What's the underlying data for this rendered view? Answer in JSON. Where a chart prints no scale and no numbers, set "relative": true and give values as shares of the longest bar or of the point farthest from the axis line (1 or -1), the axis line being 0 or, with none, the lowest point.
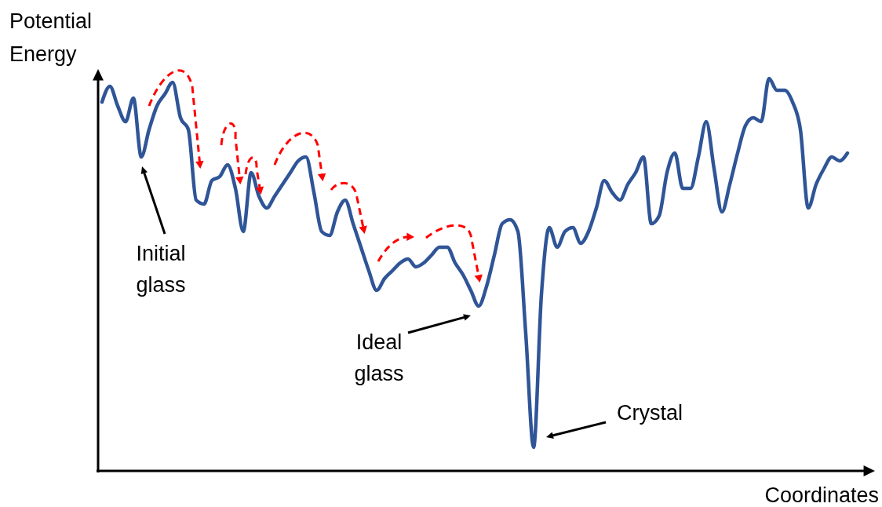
{
  "chart_data": {
    "type": "line",
    "relative": true,
    "xlabel": "Coordinates",
    "ylabel": "Potential Energy",
    "color": "#2f5597",
    "categories": [
      null,
      null,
      null,
      null,
      null,
      null,
      null,
      null,
      null,
      null,
      null,
      null,
      null,
      null,
      null,
      null,
      null,
      null,
      null,
      null,
      null,
      null,
      null,
      null,
      null,
      null,
      null,
      null,
      null,
      null,
      null,
      null,
      null,
      null,
      null,
      null,
      null,
      null,
      null,
      null,
      null,
      null,
      null,
      null,
      null,
      null,
      null,
      null,
      null,
      null,
      null,
      null,
      null,
      null,
      null,
      null,
      null,
      null,
      null,
      null,
      null,
      null,
      null,
      null,
      null,
      null,
      null,
      null,
      null,
      null,
      null,
      null,
      null,
      null,
      null,
      null,
      null,
      null,
      null,
      null,
      null,
      null,
      null,
      null,
      null,
      null,
      null,
      null,
      null,
      null,
      null,
      null,
      null,
      null,
      null,
      null
    ],
    "values": [
      0.94,
      0.98,
      0.93,
      0.89,
      0.95,
      0.8,
      0.87,
      0.93,
      0.96,
      0.99,
      0.9,
      0.87,
      0.69,
      0.68,
      0.74,
      0.75,
      0.78,
      0.72,
      0.61,
      0.76,
      0.7,
      0.67,
      0.7,
      0.73,
      0.76,
      0.79,
      0.8,
      0.71,
      0.61,
      0.6,
      0.66,
      0.69,
      0.63,
      0.57,
      0.51,
      0.46,
      0.49,
      0.51,
      0.53,
      0.54,
      0.52,
      0.53,
      0.55,
      0.57,
      0.57,
      0.53,
      0.5,
      0.46,
      0.42,
      0.47,
      0.55,
      0.63,
      0.64,
      0.61,
      0.35,
      0.06,
      0.45,
      0.62,
      0.57,
      0.61,
      0.62,
      0.58,
      0.61,
      0.67,
      0.74,
      0.71,
      0.69,
      0.73,
      0.76,
      0.8,
      0.63,
      0.65,
      0.76,
      0.81,
      0.72,
      0.72,
      0.8,
      0.89,
      0.77,
      0.66,
      0.73,
      0.81,
      0.88,
      0.9,
      0.89,
      1.0,
      0.97,
      0.97,
      0.94,
      0.87,
      0.67,
      0.73,
      0.77,
      0.8,
      0.79,
      0.81
    ],
    "annotations": [
      "Initial glass",
      "Ideal glass",
      "Crystal"
    ]
  }
}
